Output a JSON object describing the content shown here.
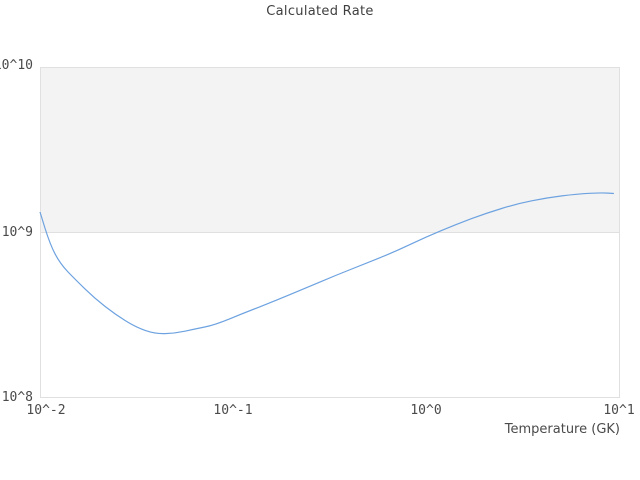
{
  "title": "Calculated Rate",
  "axes": {
    "x": {
      "label": "Temperature (GK)",
      "scale": "log",
      "range": [
        0.01,
        10
      ],
      "tick_labels": [
        "10^-2",
        "10^-1",
        "10^0",
        "10^1"
      ]
    },
    "y": {
      "label": "",
      "scale": "log",
      "range": [
        100000000.0,
        10000000000.0
      ],
      "tick_labels": [
        "10^8",
        "10^9",
        "10^10"
      ]
    }
  },
  "colors": {
    "line": "#6da2e0",
    "band_fill": "#f3f3f3",
    "grid_border": "#e0e0e0",
    "title_text": "#3f3f3f",
    "tick_text": "#4a4a4a"
  },
  "chart_data": {
    "type": "line",
    "title": "Calculated Rate",
    "xlabel": "Temperature (GK)",
    "ylabel": "",
    "xscale": "log",
    "yscale": "log",
    "xlim": [
      0.01,
      10
    ],
    "ylim": [
      100000000.0,
      10000000000.0
    ],
    "grid": "horizontal-decades-only",
    "legend": "none",
    "shaded_band_y": [
      1000000000.0,
      10000000000.0
    ],
    "series": [
      {
        "name": "Calculated Rate",
        "points": [
          [
            0.01,
            1330000000.0
          ],
          [
            0.0113,
            840000000.0
          ],
          [
            0.0127,
            650000000.0
          ],
          [
            0.0152,
            520000000.0
          ],
          [
            0.0192,
            400000000.0
          ],
          [
            0.0245,
            320000000.0
          ],
          [
            0.0311,
            269000000.0
          ],
          [
            0.0394,
            244000000.0
          ],
          [
            0.05,
            246000000.0
          ],
          [
            0.0632,
            261000000.0
          ],
          [
            0.08,
            276000000.0
          ],
          [
            0.114,
            327000000.0
          ],
          [
            0.164,
            386000000.0
          ],
          [
            0.235,
            460000000.0
          ],
          [
            0.337,
            550000000.0
          ],
          [
            0.483,
            650000000.0
          ],
          [
            0.693,
            770000000.0
          ],
          [
            0.993,
            940000000.0
          ],
          [
            1.42,
            1120000000.0
          ],
          [
            2.04,
            1310000000.0
          ],
          [
            2.92,
            1490000000.0
          ],
          [
            4.18,
            1620000000.0
          ],
          [
            5.99,
            1710000000.0
          ],
          [
            8.1,
            1740000000.0
          ],
          [
            9.3,
            1720000000.0
          ]
        ]
      }
    ]
  }
}
